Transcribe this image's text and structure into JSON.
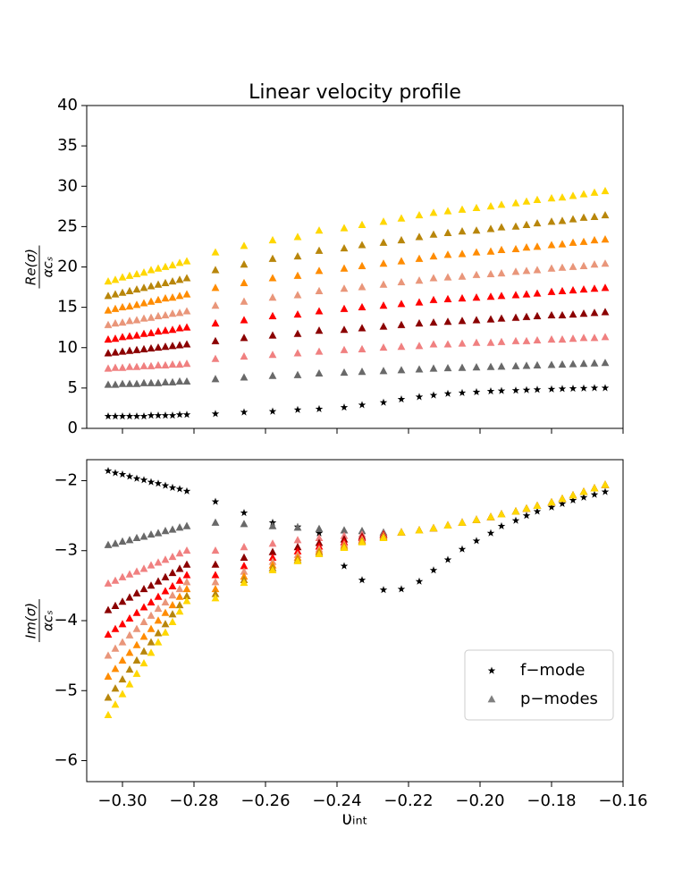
{
  "chart_data": [
    {
      "type": "scatter",
      "title": "Linear velocity profile",
      "y_label": {
        "numerator": "Re(σ)",
        "denominator": "αcₛ"
      },
      "xlim": [
        -0.31,
        -0.16
      ],
      "xticks": [
        -0.3,
        -0.28,
        -0.26,
        -0.24,
        -0.22,
        -0.2,
        -0.18,
        -0.16
      ],
      "ylim": [
        0,
        40
      ],
      "yticks": [
        0,
        5,
        10,
        15,
        20,
        25,
        30,
        35,
        40
      ],
      "x": [
        -0.304,
        -0.302,
        -0.3,
        -0.298,
        -0.296,
        -0.294,
        -0.292,
        -0.29,
        -0.288,
        -0.286,
        -0.284,
        -0.282,
        -0.274,
        -0.266,
        -0.258,
        -0.251,
        -0.245,
        -0.238,
        -0.233,
        -0.227,
        -0.222,
        -0.217,
        -0.213,
        -0.209,
        -0.205,
        -0.201,
        -0.197,
        -0.194,
        -0.19,
        -0.187,
        -0.184,
        -0.18,
        -0.177,
        -0.174,
        -0.171,
        -0.168,
        -0.165
      ],
      "series": [
        {
          "marker": "star",
          "color": "#000000",
          "values": [
            1.5,
            1.5,
            1.5,
            1.5,
            1.5,
            1.5,
            1.6,
            1.6,
            1.6,
            1.6,
            1.7,
            1.7,
            1.8,
            2.0,
            2.1,
            2.3,
            2.4,
            2.6,
            2.9,
            3.2,
            3.6,
            3.9,
            4.1,
            4.3,
            4.4,
            4.5,
            4.6,
            4.65,
            4.7,
            4.75,
            4.8,
            4.85,
            4.9,
            4.93,
            4.96,
            5.0,
            5.0
          ]
        },
        {
          "marker": "triangle",
          "modes": [
            {
              "color": "#696969",
              "values": [
                5.4,
                5.4,
                5.5,
                5.5,
                5.5,
                5.6,
                5.6,
                5.6,
                5.7,
                5.7,
                5.8,
                5.8,
                6.1,
                6.3,
                6.5,
                6.6,
                6.8,
                6.9,
                7.0,
                7.1,
                7.2,
                7.3,
                7.4,
                7.45,
                7.5,
                7.55,
                7.6,
                7.65,
                7.7,
                7.75,
                7.8,
                7.85,
                7.9,
                7.95,
                8.0,
                8.05,
                8.1
              ]
            },
            {
              "color": "#f08080",
              "values": [
                7.4,
                7.5,
                7.5,
                7.6,
                7.6,
                7.7,
                7.7,
                7.8,
                7.8,
                7.9,
                7.9,
                8.0,
                8.6,
                8.9,
                9.1,
                9.3,
                9.5,
                9.7,
                9.8,
                10.0,
                10.1,
                10.2,
                10.4,
                10.4,
                10.5,
                10.6,
                10.6,
                10.7,
                10.8,
                10.8,
                10.9,
                11.0,
                11.0,
                11.1,
                11.2,
                11.2,
                11.3
              ]
            },
            {
              "color": "#8b0000",
              "values": [
                9.3,
                9.4,
                9.5,
                9.6,
                9.7,
                9.8,
                9.9,
                10.0,
                10.1,
                10.2,
                10.3,
                10.4,
                10.8,
                11.2,
                11.5,
                11.7,
                12.1,
                12.2,
                12.4,
                12.6,
                12.8,
                13.0,
                13.1,
                13.2,
                13.3,
                13.4,
                13.5,
                13.6,
                13.7,
                13.8,
                13.9,
                14.0,
                14.0,
                14.1,
                14.2,
                14.3,
                14.4
              ]
            },
            {
              "color": "#ff0000",
              "values": [
                11.0,
                11.1,
                11.3,
                11.4,
                11.5,
                11.7,
                11.8,
                12.0,
                12.1,
                12.2,
                12.4,
                12.5,
                13.0,
                13.4,
                13.9,
                14.1,
                14.5,
                14.8,
                15.0,
                15.2,
                15.4,
                15.6,
                15.9,
                16.0,
                16.1,
                16.2,
                16.3,
                16.4,
                16.5,
                16.6,
                16.7,
                16.9,
                17.0,
                17.1,
                17.2,
                17.3,
                17.4
              ]
            },
            {
              "color": "#e9967a",
              "values": [
                12.8,
                13.0,
                13.1,
                13.3,
                13.4,
                13.6,
                13.7,
                13.9,
                14.0,
                14.2,
                14.3,
                14.5,
                15.2,
                15.7,
                16.2,
                16.5,
                17.0,
                17.3,
                17.5,
                17.8,
                18.1,
                18.3,
                18.6,
                18.7,
                18.8,
                19.0,
                19.1,
                19.2,
                19.4,
                19.5,
                19.6,
                19.8,
                19.9,
                20.0,
                20.1,
                20.3,
                20.4
              ]
            },
            {
              "color": "#ff8c00",
              "values": [
                14.6,
                14.8,
                15.0,
                15.1,
                15.3,
                15.5,
                15.7,
                15.9,
                16.1,
                16.2,
                16.4,
                16.6,
                17.4,
                18.0,
                18.6,
                18.9,
                19.5,
                19.8,
                20.1,
                20.4,
                20.7,
                21.0,
                21.3,
                21.5,
                21.6,
                21.8,
                21.9,
                22.1,
                22.2,
                22.4,
                22.5,
                22.7,
                22.8,
                23.0,
                23.1,
                23.3,
                23.4
              ]
            },
            {
              "color": "#b8860b",
              "values": [
                16.4,
                16.6,
                16.8,
                17.0,
                17.2,
                17.4,
                17.6,
                17.8,
                18.0,
                18.2,
                18.4,
                18.6,
                19.6,
                20.3,
                21.0,
                21.3,
                22.0,
                22.3,
                22.7,
                23.0,
                23.3,
                23.7,
                24.0,
                24.2,
                24.4,
                24.5,
                24.7,
                24.9,
                25.0,
                25.2,
                25.4,
                25.6,
                25.7,
                25.9,
                26.1,
                26.2,
                26.4
              ]
            },
            {
              "color": "#ffd700",
              "values": [
                18.2,
                18.4,
                18.7,
                18.9,
                19.1,
                19.3,
                19.6,
                19.8,
                20.0,
                20.2,
                20.5,
                20.7,
                21.8,
                22.6,
                23.3,
                23.7,
                24.5,
                24.8,
                25.2,
                25.6,
                26.0,
                26.4,
                26.7,
                26.9,
                27.1,
                27.3,
                27.5,
                27.7,
                27.9,
                28.1,
                28.3,
                28.5,
                28.6,
                28.8,
                29.0,
                29.2,
                29.4
              ]
            }
          ]
        }
      ]
    },
    {
      "type": "scatter",
      "y_label": {
        "numerator": "Im(σ)",
        "denominator": "αcₛ"
      },
      "x_label": "υᵢₙₜ",
      "xlim": [
        -0.31,
        -0.16
      ],
      "xticks": [
        {
          "value": -0.3,
          "label": "−0.30"
        },
        {
          "value": -0.28,
          "label": "−0.28"
        },
        {
          "value": -0.26,
          "label": "−0.26"
        },
        {
          "value": -0.24,
          "label": "−0.24"
        },
        {
          "value": -0.22,
          "label": "−0.22"
        },
        {
          "value": -0.2,
          "label": "−0.20"
        },
        {
          "value": -0.18,
          "label": "−0.18"
        },
        {
          "value": -0.16,
          "label": "−0.16"
        }
      ],
      "ylim": [
        -6.3,
        -1.7
      ],
      "yticks": [
        {
          "value": -2,
          "label": "−2"
        },
        {
          "value": -3,
          "label": "−3"
        },
        {
          "value": -4,
          "label": "−4"
        },
        {
          "value": -5,
          "label": "−5"
        },
        {
          "value": -6,
          "label": "−6"
        }
      ],
      "legend": "lower right",
      "x": [
        -0.304,
        -0.302,
        -0.3,
        -0.298,
        -0.296,
        -0.294,
        -0.292,
        -0.29,
        -0.288,
        -0.286,
        -0.284,
        -0.282,
        -0.274,
        -0.266,
        -0.258,
        -0.251,
        -0.245,
        -0.238,
        -0.233,
        -0.227,
        -0.222,
        -0.217,
        -0.213,
        -0.209,
        -0.205,
        -0.201,
        -0.197,
        -0.194,
        -0.19,
        -0.187,
        -0.184,
        -0.18,
        -0.177,
        -0.174,
        -0.171,
        -0.168,
        -0.165
      ],
      "series": [
        {
          "name": "f−mode",
          "marker": "star",
          "color": "#000000",
          "values": [
            -1.86,
            -1.89,
            -1.91,
            -1.94,
            -1.97,
            -1.99,
            -2.02,
            -2.04,
            -2.07,
            -2.1,
            -2.12,
            -2.15,
            -2.3,
            -2.46,
            -2.6,
            -2.66,
            -2.75,
            -3.22,
            -3.42,
            -3.56,
            -3.55,
            -3.44,
            -3.28,
            -3.13,
            -2.98,
            -2.86,
            -2.75,
            -2.65,
            -2.57,
            -2.5,
            -2.44,
            -2.38,
            -2.33,
            -2.28,
            -2.24,
            -2.2,
            -2.16
          ]
        },
        {
          "name": "p−modes",
          "marker": "triangle",
          "color": "#808080",
          "modes": [
            {
              "color": "#696969",
              "values": [
                -2.92,
                -2.9,
                -2.87,
                -2.85,
                -2.82,
                -2.8,
                -2.77,
                -2.75,
                -2.72,
                -2.7,
                -2.67,
                -2.65,
                -2.6,
                -2.62,
                -2.65,
                -2.67,
                -2.69,
                -2.71,
                -2.72,
                -2.74,
                -2.74,
                -2.71,
                -2.68,
                -2.64,
                -2.6,
                -2.56,
                -2.52,
                -2.48,
                -2.44,
                -2.4,
                -2.36,
                -2.31,
                -2.26,
                -2.21,
                -2.16,
                -2.11,
                -2.06
              ]
            },
            {
              "color": "#f08080",
              "values": [
                -3.47,
                -3.43,
                -3.38,
                -3.34,
                -3.3,
                -3.26,
                -3.21,
                -3.17,
                -3.13,
                -3.09,
                -3.04,
                -3.0,
                -3.0,
                -2.95,
                -2.9,
                -2.85,
                -2.82,
                -2.79,
                -2.77,
                -2.76,
                -2.74,
                -2.71,
                -2.68,
                -2.64,
                -2.6,
                -2.56,
                -2.52,
                -2.48,
                -2.44,
                -2.4,
                -2.36,
                -2.31,
                -2.26,
                -2.21,
                -2.16,
                -2.11,
                -2.06
              ]
            },
            {
              "color": "#8b0000",
              "values": [
                -3.85,
                -3.79,
                -3.73,
                -3.67,
                -3.61,
                -3.55,
                -3.5,
                -3.44,
                -3.38,
                -3.32,
                -3.26,
                -3.2,
                -3.2,
                -3.1,
                -3.02,
                -2.95,
                -2.89,
                -2.84,
                -2.8,
                -2.77,
                -2.74,
                -2.71,
                -2.68,
                -2.64,
                -2.6,
                -2.56,
                -2.52,
                -2.48,
                -2.44,
                -2.4,
                -2.36,
                -2.31,
                -2.26,
                -2.21,
                -2.16,
                -2.11,
                -2.06
              ]
            },
            {
              "color": "#ff0000",
              "values": [
                -4.2,
                -4.12,
                -4.05,
                -3.97,
                -3.89,
                -3.81,
                -3.74,
                -3.66,
                -3.58,
                -3.51,
                -3.43,
                -3.35,
                -3.35,
                -3.22,
                -3.1,
                -3.01,
                -2.94,
                -2.88,
                -2.82,
                -2.78,
                -2.74,
                -2.71,
                -2.68,
                -2.64,
                -2.6,
                -2.56,
                -2.52,
                -2.48,
                -2.44,
                -2.4,
                -2.36,
                -2.31,
                -2.26,
                -2.21,
                -2.16,
                -2.11,
                -2.06
              ]
            },
            {
              "color": "#e9967a",
              "values": [
                -4.5,
                -4.4,
                -4.31,
                -4.21,
                -4.12,
                -4.02,
                -3.93,
                -3.83,
                -3.74,
                -3.64,
                -3.55,
                -3.45,
                -3.45,
                -3.3,
                -3.16,
                -3.06,
                -2.98,
                -2.91,
                -2.84,
                -2.79,
                -2.74,
                -2.71,
                -2.68,
                -2.64,
                -2.6,
                -2.56,
                -2.52,
                -2.48,
                -2.44,
                -2.4,
                -2.36,
                -2.31,
                -2.26,
                -2.21,
                -2.16,
                -2.11,
                -2.06
              ]
            },
            {
              "color": "#ff8c00",
              "values": [
                -4.8,
                -4.69,
                -4.57,
                -4.46,
                -4.35,
                -4.23,
                -4.12,
                -4.0,
                -3.89,
                -3.78,
                -3.66,
                -3.55,
                -3.55,
                -3.37,
                -3.21,
                -3.1,
                -3.01,
                -2.93,
                -2.86,
                -2.8,
                -2.74,
                -2.71,
                -2.68,
                -2.64,
                -2.6,
                -2.56,
                -2.52,
                -2.48,
                -2.44,
                -2.4,
                -2.36,
                -2.31,
                -2.26,
                -2.21,
                -2.16,
                -2.11,
                -2.06
              ]
            },
            {
              "color": "#b8860b",
              "values": [
                -5.1,
                -4.97,
                -4.84,
                -4.7,
                -4.57,
                -4.44,
                -4.31,
                -4.18,
                -4.05,
                -3.91,
                -3.78,
                -3.65,
                -3.62,
                -3.42,
                -3.25,
                -3.13,
                -3.03,
                -2.95,
                -2.87,
                -2.81,
                -2.74,
                -2.71,
                -2.68,
                -2.64,
                -2.6,
                -2.56,
                -2.52,
                -2.48,
                -2.44,
                -2.4,
                -2.36,
                -2.31,
                -2.26,
                -2.21,
                -2.16,
                -2.11,
                -2.06
              ]
            },
            {
              "color": "#ffd700",
              "values": [
                -5.35,
                -5.2,
                -5.05,
                -4.91,
                -4.76,
                -4.61,
                -4.46,
                -4.31,
                -4.17,
                -4.02,
                -3.87,
                -3.72,
                -3.68,
                -3.46,
                -3.28,
                -3.15,
                -3.05,
                -2.96,
                -2.88,
                -2.82,
                -2.74,
                -2.71,
                -2.68,
                -2.64,
                -2.6,
                -2.56,
                -2.52,
                -2.48,
                -2.44,
                -2.4,
                -2.36,
                -2.31,
                -2.26,
                -2.21,
                -2.16,
                -2.11,
                -2.06
              ]
            }
          ]
        }
      ]
    }
  ]
}
